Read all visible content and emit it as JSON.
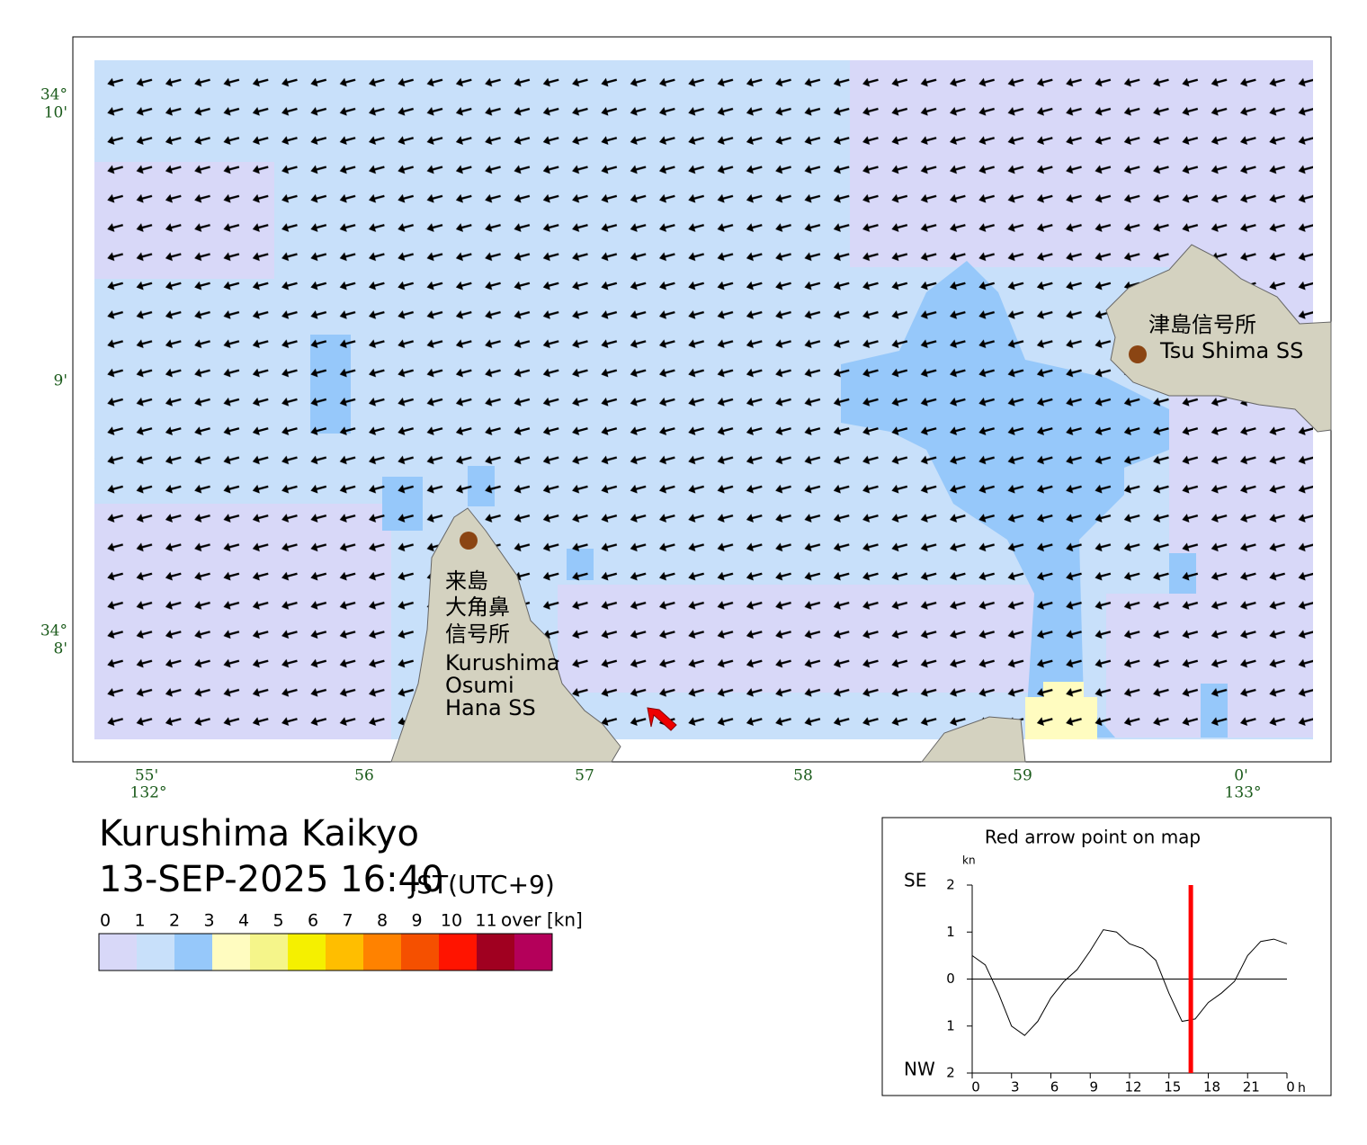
{
  "map": {
    "title": "Kurushima Kaikyo",
    "datetime": "13-SEP-2025 16:40",
    "timezone": "JST(UTC+9)",
    "lon_labels": [
      "55'",
      "56",
      "57",
      "58",
      "59",
      "0'"
    ],
    "lon_degrees": [
      "132°",
      "133°"
    ],
    "lat_labels": [
      "34°",
      "10'",
      "9'",
      "34°",
      "8'"
    ],
    "places": {
      "kurushima": [
        "来島",
        "大角鼻",
        "信号所",
        "Kurushima",
        "Osumi",
        "Hana SS"
      ],
      "tsushima": [
        "津島信号所",
        "Tsu Shima SS"
      ]
    }
  },
  "legend": {
    "labels": [
      0,
      1,
      2,
      3,
      4,
      5,
      6,
      7,
      8,
      9,
      10,
      11
    ],
    "unit": "over [kn]",
    "colors": [
      "#d8d8f8",
      "#c8e0fa",
      "#96c8fa",
      "#fffcc0",
      "#f5f58a",
      "#f5f000",
      "#ffbe00",
      "#ff8200",
      "#f55000",
      "#ff1400",
      "#a00020",
      "#b4005a"
    ]
  },
  "chart_data": {
    "type": "line",
    "title": "Red arrow point on map",
    "y_unit": "kn",
    "x_unit": "h",
    "y_top_label": "SE",
    "y_bottom_label": "NW",
    "x": [
      0,
      1,
      2,
      3,
      4,
      5,
      6,
      7,
      8,
      9,
      10,
      11,
      12,
      13,
      14,
      15,
      16,
      17,
      18,
      19,
      20,
      21,
      22,
      23,
      24
    ],
    "values": [
      0.5,
      0.3,
      -0.3,
      -1.0,
      -1.2,
      -0.9,
      -0.4,
      -0.05,
      0.2,
      0.6,
      1.05,
      1.0,
      0.75,
      0.65,
      0.4,
      -0.3,
      -0.9,
      -0.85,
      -0.5,
      -0.3,
      -0.05,
      0.5,
      0.8,
      0.85,
      0.75
    ],
    "color": "#000000",
    "marker_x": 16.67,
    "marker_color": "#ff0000",
    "xlim": [
      0,
      24
    ],
    "xticks": [
      0,
      3,
      6,
      9,
      12,
      15,
      18,
      21,
      {
        "value": 24,
        "label": "0"
      }
    ],
    "ylim": [
      -2,
      2
    ],
    "yticks": [
      2,
      1,
      0,
      {
        "value": -1,
        "label": "1"
      },
      {
        "value": -2,
        "label": "2"
      }
    ]
  }
}
